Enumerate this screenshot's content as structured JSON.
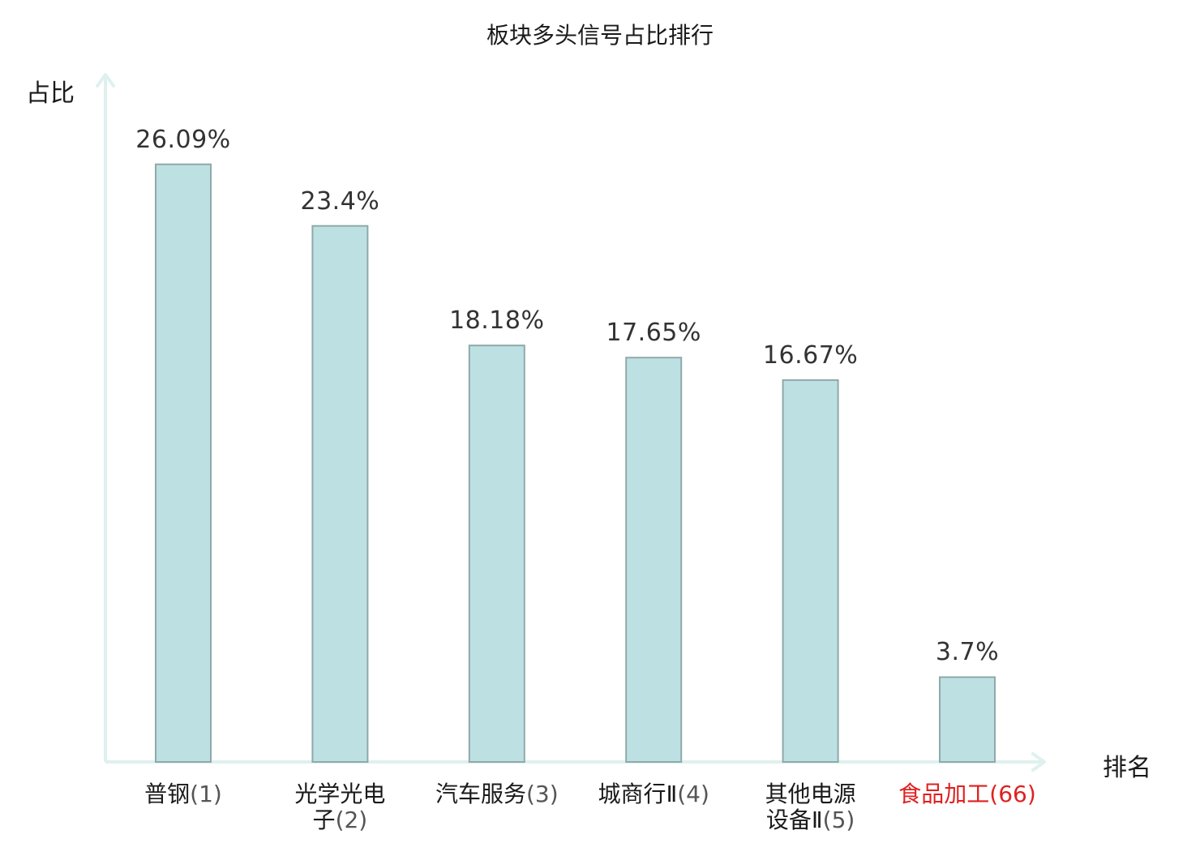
{
  "chart_data": {
    "type": "bar",
    "title": "板块多头信号占比排行",
    "ylabel": "占比",
    "xlabel": "排名",
    "categories": [
      {
        "name": "普钢",
        "rank": "(1)",
        "lines": [
          "普钢(1)"
        ]
      },
      {
        "name": "光学光电子",
        "rank": "(2)",
        "lines": [
          "光学光电",
          "子(2)"
        ]
      },
      {
        "name": "汽车服务",
        "rank": "(3)",
        "lines": [
          "汽车服务(3)"
        ]
      },
      {
        "name": "城商行Ⅱ",
        "rank": "(4)",
        "lines": [
          "城商行Ⅱ(4)"
        ]
      },
      {
        "name": "其他电源设备Ⅱ",
        "rank": "(5)",
        "lines": [
          "其他电源",
          "设备Ⅱ(5)"
        ]
      },
      {
        "name": "食品加工",
        "rank": "(66)",
        "lines": [
          "食品加工(66)"
        ]
      }
    ],
    "values": [
      26.09,
      23.4,
      18.18,
      17.65,
      16.67,
      3.7
    ],
    "value_labels": [
      "26.09%",
      "23.4%",
      "18.18%",
      "17.65%",
      "16.67%",
      "3.7%"
    ],
    "highlight_index": 5,
    "ylim": [
      0,
      30
    ],
    "grid": false,
    "legend": "none"
  },
  "colors": {
    "bar_fill": "#bde1e3",
    "bar_stroke": "#8fa9aa",
    "axis": "#dff1ee",
    "highlight_text": "#e02020",
    "value_text": "#333333"
  }
}
